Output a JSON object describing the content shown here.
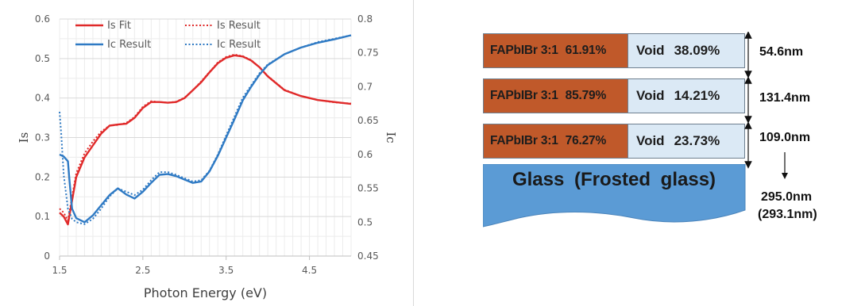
{
  "chart_data": {
    "type": "line",
    "xlabel": "Photon Energy (eV)",
    "ylabel_left": "Is",
    "ylabel_right": "Ic",
    "xlim": [
      1.5,
      5.0
    ],
    "ylim_left": [
      0,
      0.6
    ],
    "ylim_right": [
      0.45,
      0.8
    ],
    "x_ticks": [
      "1.5",
      "2.5",
      "3.5",
      "4.5"
    ],
    "y_ticks_left": [
      "0",
      "0.1",
      "0.2",
      "0.3",
      "0.4",
      "0.5",
      "0.6"
    ],
    "y_ticks_right": [
      "0.45",
      "0.5",
      "0.55",
      "0.6",
      "0.65",
      "0.7",
      "0.75",
      "0.8"
    ],
    "grid": true,
    "legend_position": "top",
    "series": [
      {
        "name": "Is Fit",
        "axis": "left",
        "style": "solid",
        "color": "#e02a2a",
        "x": [
          1.5,
          1.55,
          1.6,
          1.65,
          1.7,
          1.8,
          1.9,
          2.0,
          2.1,
          2.2,
          2.3,
          2.4,
          2.5,
          2.6,
          2.7,
          2.8,
          2.9,
          3.0,
          3.1,
          3.2,
          3.3,
          3.4,
          3.5,
          3.6,
          3.7,
          3.8,
          3.9,
          4.0,
          4.2,
          4.4,
          4.6,
          4.8,
          5.0
        ],
        "y": [
          0.11,
          0.1,
          0.08,
          0.14,
          0.2,
          0.25,
          0.28,
          0.31,
          0.33,
          0.333,
          0.335,
          0.35,
          0.375,
          0.39,
          0.39,
          0.388,
          0.39,
          0.4,
          0.42,
          0.44,
          0.465,
          0.488,
          0.502,
          0.508,
          0.505,
          0.495,
          0.478,
          0.455,
          0.42,
          0.405,
          0.395,
          0.39,
          0.385
        ]
      },
      {
        "name": "Is Result",
        "axis": "left",
        "style": "dotted",
        "color": "#e02a2a",
        "x": [
          1.5,
          1.55,
          1.6,
          1.65,
          1.7,
          1.8,
          1.9,
          2.0,
          2.1,
          2.2,
          2.3,
          2.4,
          2.5,
          2.6,
          2.7,
          2.8,
          2.9,
          3.0,
          3.1,
          3.2,
          3.3,
          3.4,
          3.5,
          3.6,
          3.7,
          3.8,
          3.9,
          4.0,
          4.2,
          4.4,
          4.6,
          4.8,
          5.0
        ],
        "y": [
          0.12,
          0.11,
          0.09,
          0.15,
          0.21,
          0.26,
          0.29,
          0.315,
          0.33,
          0.332,
          0.337,
          0.352,
          0.378,
          0.392,
          0.39,
          0.388,
          0.391,
          0.401,
          0.42,
          0.442,
          0.466,
          0.49,
          0.504,
          0.51,
          0.506,
          0.496,
          0.478,
          0.456,
          0.421,
          0.405,
          0.395,
          0.389,
          0.386
        ]
      },
      {
        "name": "Ic Result",
        "axis": "right",
        "style": "solid",
        "color": "#2f7ac4",
        "x": [
          1.5,
          1.55,
          1.6,
          1.62,
          1.65,
          1.7,
          1.8,
          1.9,
          2.0,
          2.1,
          2.2,
          2.3,
          2.4,
          2.5,
          2.6,
          2.7,
          2.8,
          2.9,
          3.0,
          3.1,
          3.2,
          3.3,
          3.4,
          3.5,
          3.6,
          3.7,
          3.8,
          3.9,
          4.0,
          4.2,
          4.4,
          4.6,
          4.8,
          5.0
        ],
        "y": [
          0.6,
          0.597,
          0.59,
          0.56,
          0.52,
          0.506,
          0.5,
          0.51,
          0.525,
          0.54,
          0.55,
          0.541,
          0.535,
          0.545,
          0.558,
          0.57,
          0.571,
          0.568,
          0.563,
          0.558,
          0.56,
          0.575,
          0.598,
          0.625,
          0.652,
          0.68,
          0.7,
          0.718,
          0.732,
          0.748,
          0.758,
          0.765,
          0.77,
          0.776
        ]
      },
      {
        "name": "Ic Result",
        "axis": "right",
        "style": "dotted",
        "color": "#2f7ac4",
        "x": [
          1.5,
          1.52,
          1.55,
          1.6,
          1.65,
          1.7,
          1.8,
          1.9,
          2.0,
          2.1,
          2.2,
          2.3,
          2.4,
          2.5,
          2.6,
          2.7,
          2.8,
          2.9,
          3.0,
          3.1,
          3.2,
          3.3,
          3.4,
          3.5,
          3.6,
          3.7,
          3.8,
          3.9,
          4.0,
          4.2,
          4.4,
          4.6,
          4.8,
          5.0
        ],
        "y": [
          0.663,
          0.63,
          0.57,
          0.52,
          0.505,
          0.5,
          0.497,
          0.505,
          0.52,
          0.538,
          0.55,
          0.545,
          0.54,
          0.548,
          0.562,
          0.574,
          0.574,
          0.57,
          0.565,
          0.56,
          0.562,
          0.576,
          0.6,
          0.628,
          0.656,
          0.684,
          0.702,
          0.72,
          0.733,
          0.748,
          0.758,
          0.766,
          0.771,
          0.776
        ]
      }
    ]
  },
  "layer_stack": {
    "layers": [
      {
        "material": "FAPbIBr 3:1",
        "material_pct": "61.91%",
        "void_label": "Void",
        "void_pct": "38.09%",
        "thickness": "54.6nm"
      },
      {
        "material": "FAPbIBr 3:1",
        "material_pct": "85.79%",
        "void_label": "Void",
        "void_pct": "14.21%",
        "thickness": "131.4nm"
      },
      {
        "material": "FAPbIBr 3:1",
        "material_pct": "76.27%",
        "void_label": "Void",
        "void_pct": "23.73%",
        "thickness": "109.0nm"
      }
    ],
    "substrate": {
      "label": "Glass   (Frosted glass)",
      "thickness": "295.0nm",
      "thickness_alt": "(293.1nm)"
    },
    "colors": {
      "material": "#c0592a",
      "void": "#dbe9f5",
      "glass": "#5b9bd5"
    }
  }
}
